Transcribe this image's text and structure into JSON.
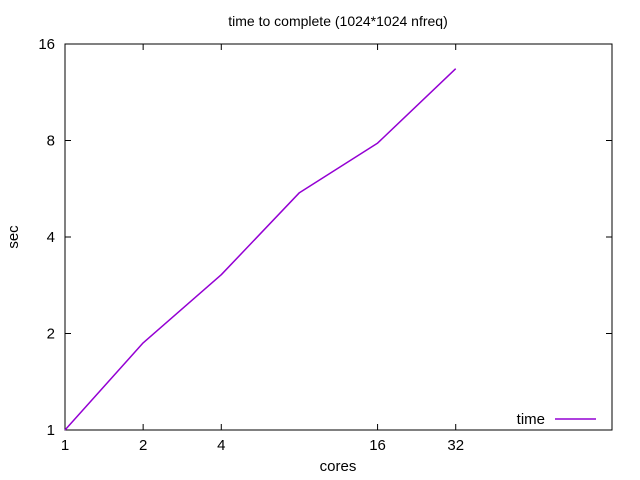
{
  "chart_data": {
    "type": "line",
    "title": "time to complete (1024*1024 nfreq)",
    "xlabel": "cores",
    "ylabel": "sec",
    "x_scale": "log2",
    "y_scale": "log2",
    "xlim": [
      1,
      128
    ],
    "ylim": [
      1,
      16
    ],
    "x_ticks": [
      1,
      2,
      4,
      16,
      32
    ],
    "x_tick_labels": [
      "1",
      "2",
      "4",
      "16",
      "32"
    ],
    "y_ticks": [
      1,
      2,
      4,
      8,
      16
    ],
    "y_tick_labels": [
      "1",
      "2",
      "4",
      "8",
      "16"
    ],
    "grid": false,
    "legend_position": "bottom-right",
    "series": [
      {
        "name": "time",
        "color": "#9400d3",
        "x": [
          1,
          2,
          4,
          8,
          16,
          32
        ],
        "y": [
          1.0,
          1.87,
          3.05,
          5.5,
          7.85,
          13.4
        ]
      }
    ]
  }
}
